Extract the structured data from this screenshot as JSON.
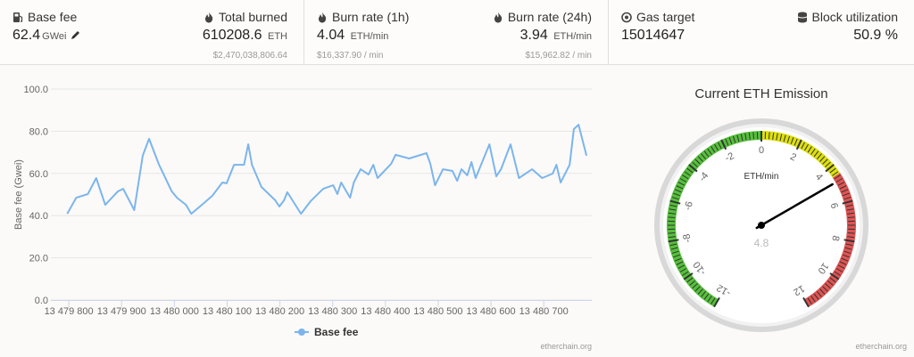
{
  "stats": [
    {
      "label": "Base fee",
      "value": "62.4",
      "unit": "GWei"
    },
    {
      "label": "Total burned",
      "value": "610208.6",
      "unit": "ETH",
      "sub": "$2,470,038,806.64"
    },
    {
      "label": "Burn rate (1h)",
      "value": "4.04",
      "unit": "ETH/min",
      "sub": "$16,337.90 / min"
    },
    {
      "label": "Burn rate (24h)",
      "value": "3.94",
      "unit": "ETH/min",
      "sub": "$15,962.82 / min"
    },
    {
      "label": "Gas target",
      "value": "15014647"
    },
    {
      "label": "Block utilization",
      "value": "50.9 %"
    }
  ],
  "chart_data": [
    {
      "type": "line",
      "y_label": "Base fee (Gwei)",
      "credits": "etherchain.org",
      "grid": true,
      "legend": "bottom",
      "x": [
        13479797,
        13479814,
        13479836,
        13479852,
        13479869,
        13479893,
        13479903,
        13479924,
        13479940,
        13479952,
        13479971,
        13479995,
        13480005,
        13480022,
        13480032,
        13480052,
        13480072,
        13480091,
        13480099,
        13480113,
        13480132,
        13480140,
        13480147,
        13480165,
        13480191,
        13480199,
        13480208,
        13480214,
        13480240,
        13480258,
        13480282,
        13480301,
        13480309,
        13480316,
        13480333,
        13480340,
        13480353,
        13480368,
        13480377,
        13480385,
        13480411,
        13480419,
        13480445,
        13480478,
        13480485,
        13480494,
        13480509,
        13480527,
        13480536,
        13480544,
        13480555,
        13480563,
        13480571,
        13480597,
        13480610,
        13480619,
        13480637,
        13480653,
        13480678,
        13480697,
        13480717,
        13480724,
        13480732,
        13480749,
        13480757,
        13480766,
        13480781
      ],
      "series": [
        {
          "name": "Base fee",
          "color": "#7cb5ec",
          "values": [
            40.9,
            48.5,
            50.2,
            57.8,
            45.1,
            51.5,
            52.7,
            42.6,
            68.4,
            76.4,
            64.1,
            51.5,
            48.5,
            45.1,
            40.9,
            45.1,
            49.4,
            55.7,
            55.3,
            64.1,
            64.1,
            73.8,
            64.1,
            53.6,
            47.3,
            44.3,
            47.3,
            51.1,
            40.9,
            46.8,
            52.7,
            54.4,
            50.2,
            55.7,
            48.5,
            55.7,
            62.0,
            59.5,
            64.1,
            57.8,
            64.6,
            68.8,
            67.1,
            69.6,
            64.6,
            54.4,
            62.0,
            61.2,
            56.5,
            62.0,
            59.1,
            65.4,
            57.8,
            73.8,
            58.6,
            62.0,
            73.8,
            57.8,
            62.0,
            57.8,
            59.9,
            64.1,
            55.7,
            64.1,
            81.0,
            83.1,
            68.4
          ]
        }
      ],
      "xlim": [
        13479766,
        13480791
      ],
      "xticks": [
        {
          "value": 13479800,
          "label": "13 479 800"
        },
        {
          "value": 13479900,
          "label": "13 479 900"
        },
        {
          "value": 13480000,
          "label": "13 480 000"
        },
        {
          "value": 13480100,
          "label": "13 480 100"
        },
        {
          "value": 13480200,
          "label": "13 480 200"
        },
        {
          "value": 13480300,
          "label": "13 480 300"
        },
        {
          "value": 13480400,
          "label": "13 480 400"
        },
        {
          "value": 13480500,
          "label": "13 480 500"
        },
        {
          "value": 13480600,
          "label": "13 480 600"
        },
        {
          "value": 13480700,
          "label": "13 480 700"
        }
      ],
      "ylim": [
        0,
        100
      ],
      "yticks": [
        {
          "value": 0,
          "label": "0.0"
        },
        {
          "value": 20,
          "label": "20.0"
        },
        {
          "value": 40,
          "label": "40.0"
        },
        {
          "value": 60,
          "label": "60.0"
        },
        {
          "value": 80,
          "label": "80.0"
        },
        {
          "value": 100,
          "label": "100.0"
        }
      ]
    },
    {
      "type": "gauge",
      "title": "Current ETH Emission",
      "unit": "ETH/min",
      "value": 4.8,
      "credits": "etherchain.org",
      "ylim": [
        -12,
        12
      ],
      "yticks": [
        -12,
        -10,
        -8,
        -6,
        -4,
        -2,
        0,
        2,
        4,
        6,
        8,
        10,
        12
      ],
      "bands": [
        {
          "from": -12,
          "to": 0,
          "color": "#55bf3b"
        },
        {
          "from": 0,
          "to": 4.5,
          "color": "#dddf0d"
        },
        {
          "from": 4.5,
          "to": 12,
          "color": "#df5353"
        }
      ]
    }
  ]
}
